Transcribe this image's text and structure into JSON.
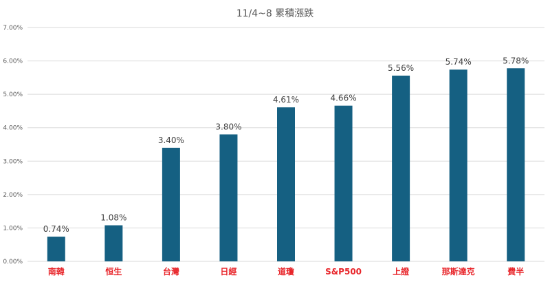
{
  "chart_data": {
    "type": "bar",
    "title": "11/4~8 累積漲跌",
    "categories": [
      "南韓",
      "恒生",
      "台灣",
      "日經",
      "道瓊",
      "S&P500",
      "上證",
      "那斯達克",
      "費半"
    ],
    "values": [
      0.74,
      1.08,
      3.4,
      3.8,
      4.61,
      4.66,
      5.56,
      5.74,
      5.78
    ],
    "data_labels": [
      "0.74%",
      "1.08%",
      "3.40%",
      "3.80%",
      "4.61%",
      "4.66%",
      "5.56%",
      "5.74%",
      "5.78%"
    ],
    "y_ticks": [
      "0.00%",
      "1.00%",
      "2.00%",
      "3.00%",
      "4.00%",
      "5.00%",
      "6.00%",
      "7.00%"
    ],
    "ylim": [
      0,
      7
    ],
    "grid": true,
    "legend": "none",
    "colors": {
      "bar": "#156082",
      "category_label": "#e8252a",
      "grid": "#d9d9d9"
    }
  }
}
